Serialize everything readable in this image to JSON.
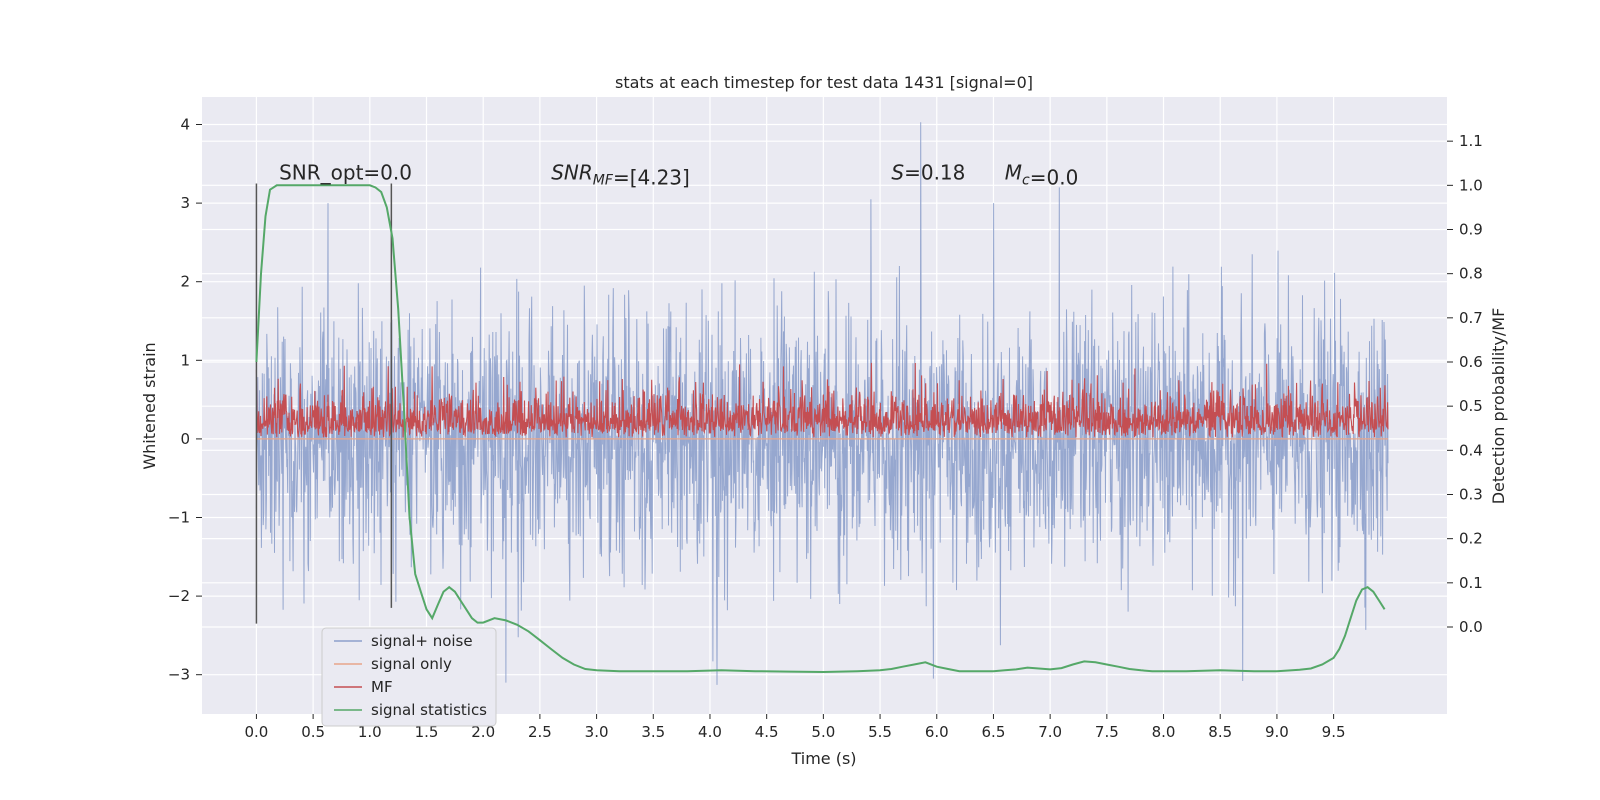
{
  "chart_data": {
    "type": "line",
    "title": "stats at each timestep for test data 1431 [signal=0]",
    "xlabel": "Time (s)",
    "ylabel_left": "Whitened strain",
    "ylabel_right": "Detection probability/MF",
    "xlim": [
      -0.48,
      10.5
    ],
    "ylim_left": [
      -3.5,
      4.35
    ],
    "ylim_right": [
      -0.197,
      1.2
    ],
    "x_ticks": [
      0.0,
      0.5,
      1.0,
      1.5,
      2.0,
      2.5,
      3.0,
      3.5,
      4.0,
      4.5,
      5.0,
      5.5,
      6.0,
      6.5,
      7.0,
      7.5,
      8.0,
      8.5,
      9.0,
      9.5
    ],
    "x_tick_labels": [
      "0.0",
      "0.5",
      "1.0",
      "1.5",
      "2.0",
      "2.5",
      "3.0",
      "3.5",
      "4.0",
      "4.5",
      "5.0",
      "5.5",
      "6.0",
      "6.5",
      "7.0",
      "7.5",
      "8.0",
      "8.5",
      "9.0",
      "9.5"
    ],
    "y_left_ticks": [
      -3,
      -2,
      -1,
      0,
      1,
      2,
      3,
      4
    ],
    "y_left_tick_labels": [
      "−3",
      "−2",
      "−1",
      "0",
      "1",
      "2",
      "3",
      "4"
    ],
    "y_right_ticks": [
      0.0,
      0.1,
      0.2,
      0.3,
      0.4,
      0.5,
      0.6,
      0.7,
      0.8,
      0.9,
      1.0,
      1.1
    ],
    "y_right_tick_labels": [
      "0.0",
      "0.1",
      "0.2",
      "0.3",
      "0.4",
      "0.5",
      "0.6",
      "0.7",
      "0.8",
      "0.9",
      "1.0",
      "1.1"
    ],
    "grid": true,
    "legend_position": "lower-left",
    "vertical_markers": [
      {
        "x": 0.0,
        "ymin": -2.35,
        "ymax": 3.25
      },
      {
        "x": 1.19,
        "ymin": -2.15,
        "ymax": 3.25
      }
    ],
    "annotations": [
      {
        "segments": [
          {
            "text": "SNR_opt=0.0",
            "style": "normal"
          }
        ],
        "x": 0.2,
        "y": 3.3
      },
      {
        "segments": [
          {
            "text": "SNR",
            "style": "italic"
          },
          {
            "text": "MF",
            "style": "italic-sub"
          },
          {
            "text": "=[4.23]",
            "style": "normal"
          }
        ],
        "x": 2.6,
        "y": 3.3
      },
      {
        "segments": [
          {
            "text": "S",
            "style": "italic"
          },
          {
            "text": "=0.18",
            "style": "normal"
          }
        ],
        "x": 5.6,
        "y": 3.3
      },
      {
        "segments": [
          {
            "text": "M",
            "style": "italic"
          },
          {
            "text": "c",
            "style": "italic-sub"
          },
          {
            "text": "=0.0",
            "style": "normal"
          }
        ],
        "x": 6.6,
        "y": 3.3
      }
    ],
    "series": [
      {
        "name": "signal+ noise",
        "color": "#8da0cb",
        "axis": "left",
        "kind": "noise",
        "t_range": [
          0.0,
          9.98
        ],
        "n_points": 2500,
        "std": 0.95,
        "range": [
          -3.15,
          4.05
        ],
        "peaks": [
          [
            5.86,
            4.03
          ],
          [
            5.42,
            3.05
          ],
          [
            6.5,
            3.0
          ],
          [
            7.08,
            3.2
          ],
          [
            0.63,
            3.0
          ],
          [
            4.06,
            -3.13
          ],
          [
            2.2,
            -3.1
          ],
          [
            5.97,
            -3.05
          ],
          [
            8.7,
            -3.08
          ]
        ]
      },
      {
        "name": "signal only",
        "color": "#e8a58a",
        "axis": "left",
        "kind": "flat",
        "t_range": [
          0.0,
          9.98
        ],
        "value": 0.0
      },
      {
        "name": "MF",
        "color": "#c44e52",
        "axis": "left",
        "kind": "mf",
        "t_range": [
          0.0,
          9.98
        ],
        "n_points": 2500,
        "range": [
          0.0,
          1.0
        ],
        "mean": 0.3
      },
      {
        "name": "signal statistics",
        "color": "#55a868",
        "axis": "right",
        "kind": "curve",
        "x": [
          0.0,
          0.04,
          0.08,
          0.12,
          0.18,
          0.25,
          0.35,
          0.5,
          0.7,
          0.9,
          1.0,
          1.05,
          1.1,
          1.15,
          1.2,
          1.25,
          1.3,
          1.35,
          1.4,
          1.45,
          1.5,
          1.55,
          1.6,
          1.65,
          1.7,
          1.75,
          1.8,
          1.85,
          1.9,
          1.95,
          2.0,
          2.1,
          2.2,
          2.3,
          2.4,
          2.5,
          2.6,
          2.7,
          2.8,
          2.9,
          3.0,
          3.2,
          3.5,
          3.8,
          4.1,
          4.4,
          4.7,
          5.0,
          5.3,
          5.5,
          5.6,
          5.7,
          5.8,
          5.9,
          6.0,
          6.1,
          6.2,
          6.3,
          6.4,
          6.5,
          6.6,
          6.7,
          6.8,
          6.9,
          7.0,
          7.1,
          7.2,
          7.3,
          7.4,
          7.5,
          7.6,
          7.7,
          7.8,
          7.9,
          8.0,
          8.2,
          8.5,
          8.8,
          9.0,
          9.2,
          9.3,
          9.4,
          9.5,
          9.55,
          9.6,
          9.65,
          9.7,
          9.75,
          9.8,
          9.85,
          9.9,
          9.95
        ],
        "values": [
          0.6,
          0.8,
          0.93,
          0.99,
          1.0,
          1.0,
          1.0,
          1.0,
          1.0,
          1.0,
          1.0,
          0.995,
          0.985,
          0.95,
          0.88,
          0.72,
          0.5,
          0.25,
          0.12,
          0.08,
          0.04,
          0.02,
          0.05,
          0.08,
          0.09,
          0.08,
          0.06,
          0.04,
          0.02,
          0.01,
          0.01,
          0.02,
          0.015,
          0.005,
          -0.01,
          -0.03,
          -0.05,
          -0.07,
          -0.085,
          -0.095,
          -0.098,
          -0.1,
          -0.1,
          -0.1,
          -0.098,
          -0.1,
          -0.101,
          -0.102,
          -0.1,
          -0.098,
          -0.095,
          -0.09,
          -0.085,
          -0.08,
          -0.09,
          -0.095,
          -0.1,
          -0.1,
          -0.1,
          -0.1,
          -0.098,
          -0.096,
          -0.092,
          -0.094,
          -0.096,
          -0.093,
          -0.085,
          -0.078,
          -0.08,
          -0.085,
          -0.09,
          -0.095,
          -0.098,
          -0.1,
          -0.1,
          -0.1,
          -0.098,
          -0.1,
          -0.1,
          -0.097,
          -0.094,
          -0.085,
          -0.07,
          -0.05,
          -0.02,
          0.02,
          0.06,
          0.085,
          0.09,
          0.08,
          0.06,
          0.04
        ]
      }
    ]
  }
}
